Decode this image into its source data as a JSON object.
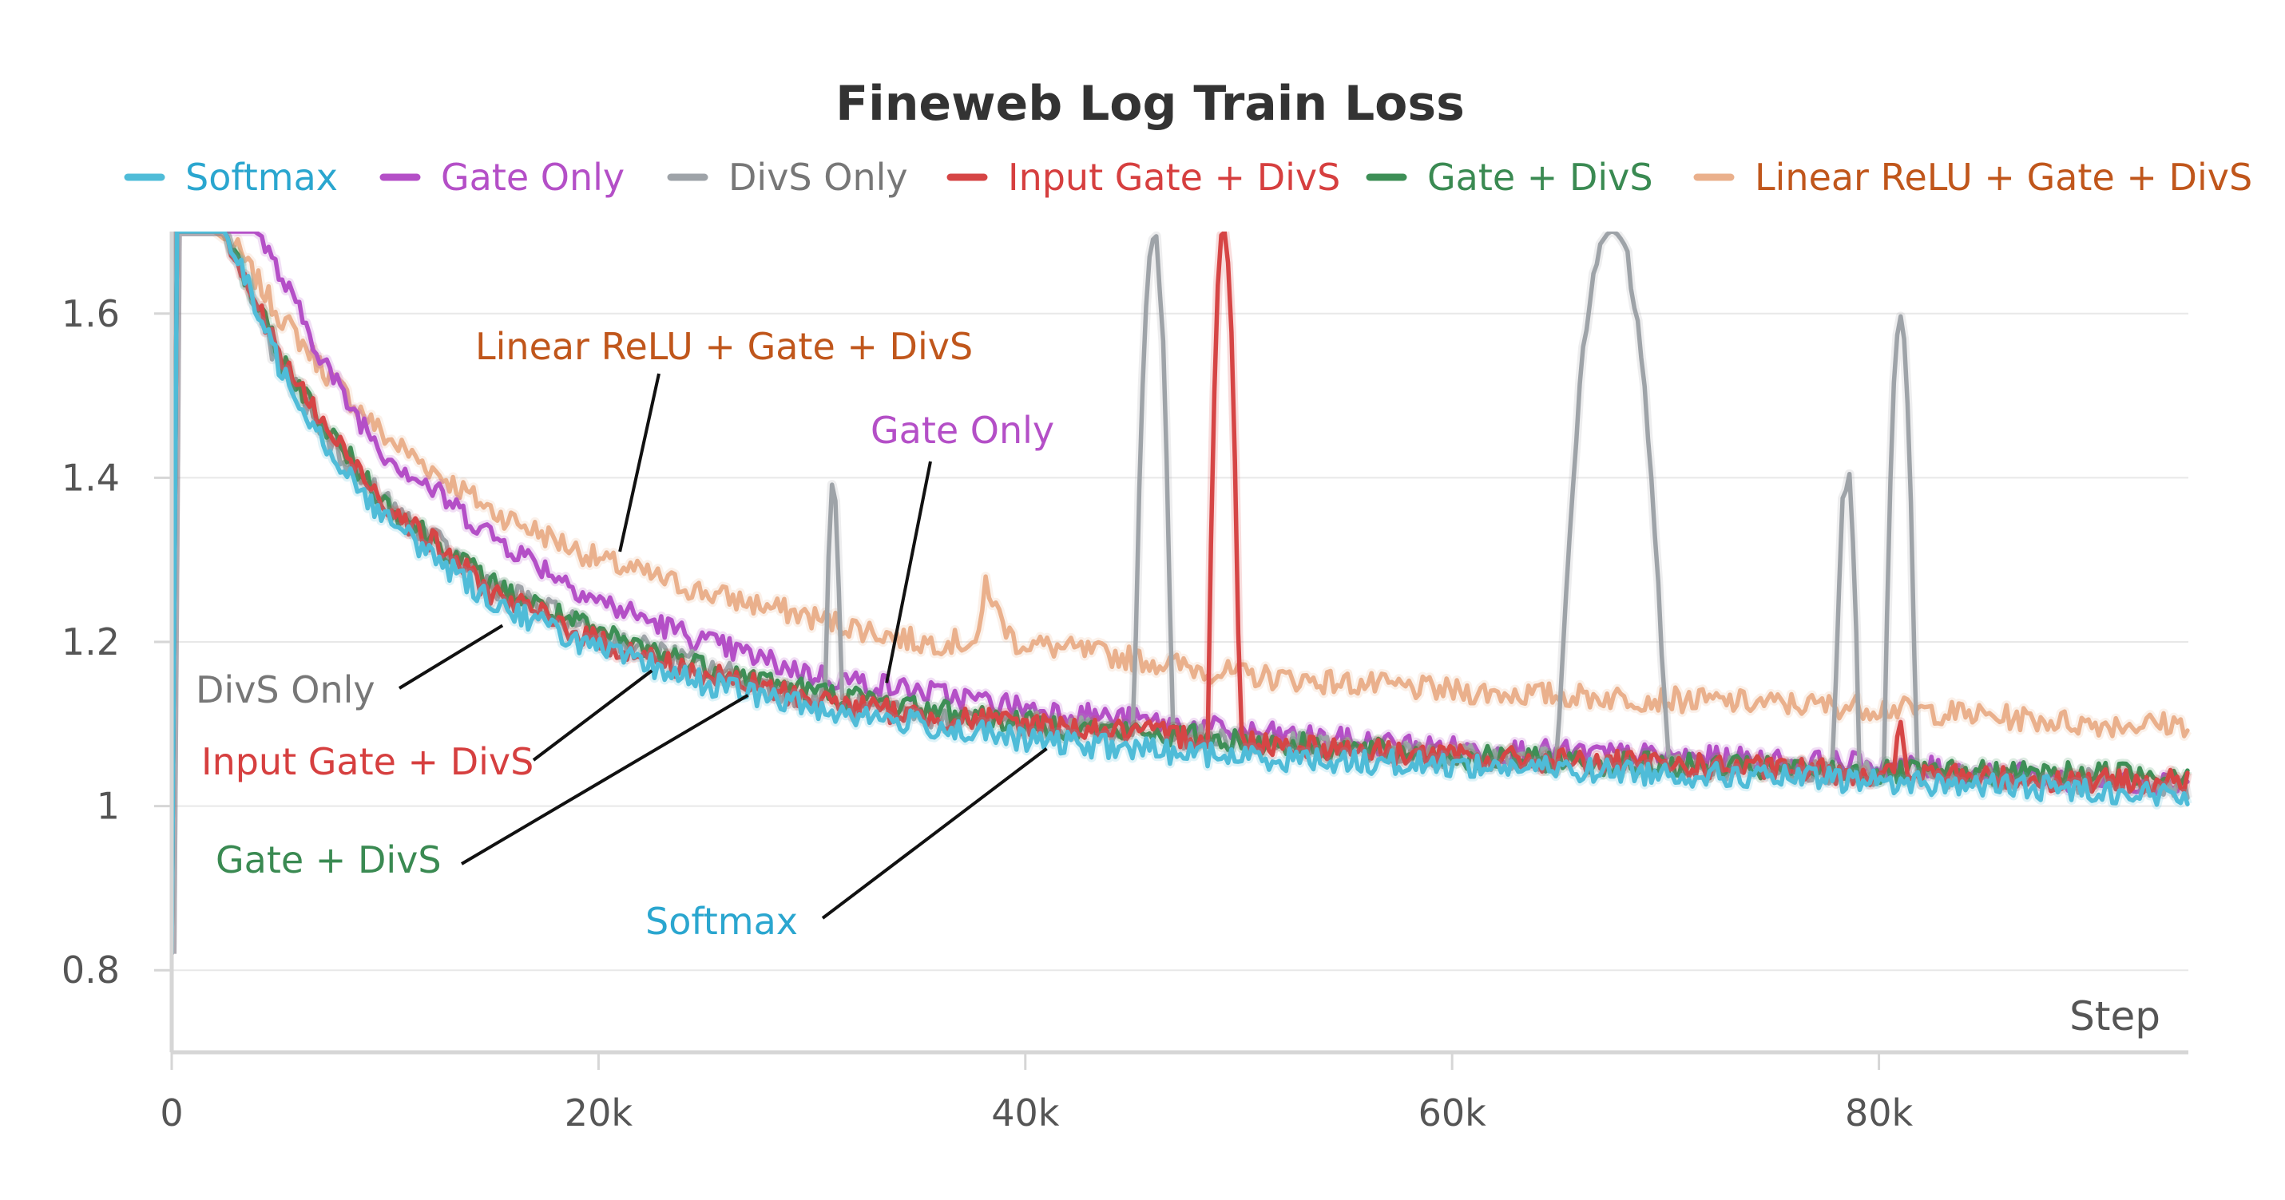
{
  "chart_data": {
    "type": "line",
    "title": "Fineweb Log Train Loss",
    "xlabel": "Step",
    "ylabel": "",
    "xlim": [
      0,
      94500
    ],
    "ylim": [
      0.7,
      1.7
    ],
    "xticks": [
      {
        "v": 0,
        "label": "0"
      },
      {
        "v": 20000,
        "label": "20k"
      },
      {
        "v": 40000,
        "label": "40k"
      },
      {
        "v": 60000,
        "label": "60k"
      },
      {
        "v": 80000,
        "label": "80k"
      }
    ],
    "yticks": [
      {
        "v": 0.8,
        "label": "0.8"
      },
      {
        "v": 1.0,
        "label": "1"
      },
      {
        "v": 1.2,
        "label": "1.2"
      },
      {
        "v": 1.4,
        "label": "1.4"
      },
      {
        "v": 1.6,
        "label": "1.6"
      }
    ],
    "legend_position": "top",
    "series": [
      {
        "id": "linrelu",
        "name": "Linear ReLU + Gate + DivS",
        "color": "#eab08c",
        "label_color": "#c0561b",
        "points": [
          [
            0,
            1.7
          ],
          [
            2000,
            1.7
          ],
          [
            3000,
            1.68
          ],
          [
            5000,
            1.6
          ],
          [
            7500,
            1.52
          ],
          [
            10000,
            1.45
          ],
          [
            15000,
            1.36
          ],
          [
            20000,
            1.3
          ],
          [
            25000,
            1.26
          ],
          [
            30000,
            1.23
          ],
          [
            35000,
            1.2
          ],
          [
            37900,
            1.2
          ],
          [
            38100,
            1.28
          ],
          [
            38600,
            1.24
          ],
          [
            39500,
            1.2
          ],
          [
            45000,
            1.18
          ],
          [
            50000,
            1.16
          ],
          [
            60000,
            1.14
          ],
          [
            70000,
            1.13
          ],
          [
            80000,
            1.12
          ],
          [
            90000,
            1.1
          ],
          [
            94500,
            1.1
          ]
        ],
        "spikes": []
      },
      {
        "id": "gate",
        "name": "Gate Only",
        "color": "#b44fc7",
        "label_color": "#b44fc7",
        "points": [
          [
            0,
            1.7
          ],
          [
            4000,
            1.7
          ],
          [
            6000,
            1.6
          ],
          [
            8000,
            1.5
          ],
          [
            10000,
            1.43
          ],
          [
            15000,
            1.33
          ],
          [
            20000,
            1.25
          ],
          [
            25000,
            1.2
          ],
          [
            30000,
            1.16
          ],
          [
            35000,
            1.14
          ],
          [
            40000,
            1.12
          ],
          [
            50000,
            1.09
          ],
          [
            60000,
            1.07
          ],
          [
            70000,
            1.06
          ],
          [
            80000,
            1.05
          ],
          [
            90000,
            1.03
          ],
          [
            94500,
            1.03
          ]
        ],
        "spikes": []
      },
      {
        "id": "divs",
        "name": "DivS Only",
        "color": "#9ea3a8",
        "label_color": "#777777",
        "points": [
          [
            0,
            1.7
          ],
          [
            2500,
            1.7
          ],
          [
            5000,
            1.54
          ],
          [
            7500,
            1.44
          ],
          [
            10000,
            1.37
          ],
          [
            15000,
            1.27
          ],
          [
            20000,
            1.21
          ],
          [
            25000,
            1.17
          ],
          [
            30000,
            1.13
          ],
          [
            35000,
            1.11
          ],
          [
            40000,
            1.1
          ],
          [
            50000,
            1.08
          ],
          [
            60000,
            1.06
          ],
          [
            70000,
            1.05
          ],
          [
            80000,
            1.04
          ],
          [
            90000,
            1.03
          ],
          [
            94500,
            1.02
          ]
        ],
        "spikes": [
          [
            31000,
            1.4,
            700
          ],
          [
            46000,
            1.69,
            1800
          ],
          [
            67500,
            1.7,
            5200
          ],
          [
            78500,
            1.4,
            1200
          ],
          [
            81000,
            1.6,
            1500
          ]
        ]
      },
      {
        "id": "input",
        "name": "Input Gate + DivS",
        "color": "#d64545",
        "label_color": "#d63f3f",
        "points": [
          [
            0,
            1.7
          ],
          [
            2500,
            1.7
          ],
          [
            5000,
            1.55
          ],
          [
            7500,
            1.45
          ],
          [
            10000,
            1.37
          ],
          [
            15000,
            1.26
          ],
          [
            20000,
            1.2
          ],
          [
            25000,
            1.16
          ],
          [
            30000,
            1.13
          ],
          [
            35000,
            1.11
          ],
          [
            40000,
            1.1
          ],
          [
            50000,
            1.08
          ],
          [
            60000,
            1.06
          ],
          [
            70000,
            1.05
          ],
          [
            80000,
            1.04
          ],
          [
            90000,
            1.03
          ],
          [
            94500,
            1.03
          ]
        ],
        "spikes": [
          [
            49300,
            1.7,
            1500
          ],
          [
            81000,
            1.09,
            600
          ]
        ]
      },
      {
        "id": "gatedivs",
        "name": "Gate + DivS",
        "color": "#3d8f56",
        "label_color": "#3a8a52",
        "points": [
          [
            0,
            1.7
          ],
          [
            2500,
            1.7
          ],
          [
            5000,
            1.55
          ],
          [
            7500,
            1.45
          ],
          [
            10000,
            1.37
          ],
          [
            15000,
            1.27
          ],
          [
            20000,
            1.21
          ],
          [
            25000,
            1.17
          ],
          [
            30000,
            1.14
          ],
          [
            35000,
            1.12
          ],
          [
            40000,
            1.1
          ],
          [
            50000,
            1.08
          ],
          [
            60000,
            1.06
          ],
          [
            70000,
            1.05
          ],
          [
            80000,
            1.04
          ],
          [
            90000,
            1.04
          ],
          [
            94500,
            1.04
          ]
        ],
        "spikes": []
      },
      {
        "id": "softmax",
        "name": "Softmax",
        "color": "#4fbcd8",
        "label_color": "#2aa6cf",
        "points": [
          [
            0,
            1.7
          ],
          [
            2500,
            1.7
          ],
          [
            5000,
            1.54
          ],
          [
            7500,
            1.43
          ],
          [
            10000,
            1.35
          ],
          [
            15000,
            1.25
          ],
          [
            20000,
            1.19
          ],
          [
            25000,
            1.15
          ],
          [
            30000,
            1.12
          ],
          [
            35000,
            1.1
          ],
          [
            40000,
            1.08
          ],
          [
            50000,
            1.06
          ],
          [
            60000,
            1.05
          ],
          [
            70000,
            1.04
          ],
          [
            80000,
            1.03
          ],
          [
            90000,
            1.02
          ],
          [
            94500,
            1.01
          ]
        ],
        "spikes": []
      }
    ],
    "legend": [
      {
        "id": "softmax",
        "label": "Softmax"
      },
      {
        "id": "gate",
        "label": "Gate Only"
      },
      {
        "id": "divs",
        "label": "DivS Only"
      },
      {
        "id": "input",
        "label": "Input Gate + DivS"
      },
      {
        "id": "gatedivs",
        "label": "Gate + DivS"
      },
      {
        "id": "linrelu",
        "label": "Linear ReLU + Gate + DivS"
      }
    ],
    "annotations": [
      {
        "id": "linrelu",
        "text": "Linear ReLU + Gate + DivS",
        "target": [
          21000,
          1.31
        ]
      },
      {
        "id": "gate",
        "text": "Gate Only",
        "target": [
          33500,
          1.15
        ]
      },
      {
        "id": "divs",
        "text": "DivS Only",
        "target": [
          15500,
          1.22
        ]
      },
      {
        "id": "input",
        "text": "Input Gate + DivS",
        "target": [
          22500,
          1.165
        ]
      },
      {
        "id": "gatedivs",
        "text": "Gate + DivS",
        "target": [
          27000,
          1.135
        ]
      },
      {
        "id": "softmax",
        "text": "Softmax",
        "target": [
          41000,
          1.07
        ]
      }
    ]
  }
}
